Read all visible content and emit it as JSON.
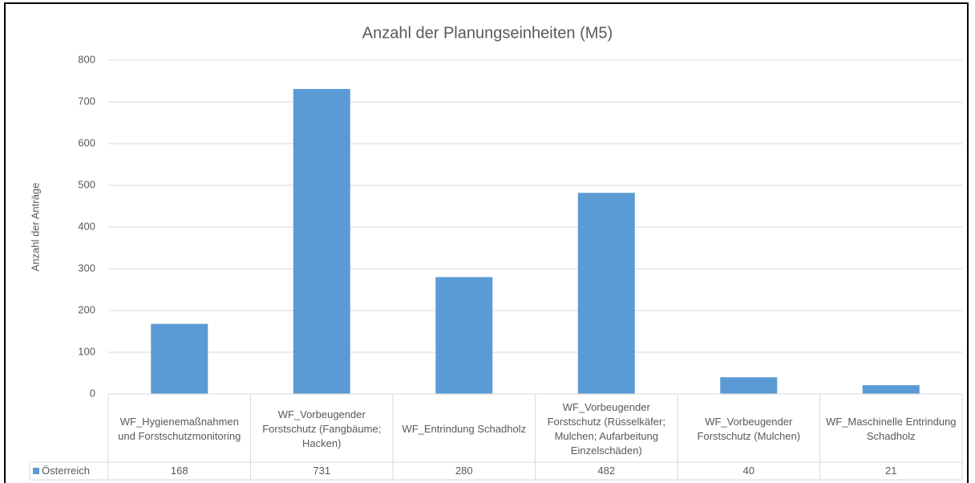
{
  "chart_data": {
    "type": "bar",
    "title": "Anzahl der Planungseinheiten (M5)",
    "y_label": "Anzahl der Anträge",
    "categories": [
      "WF_Hygienemaßnahmen und Forstschutzmonitoring",
      "WF_Vorbeugender Forstschutz (Fangbäume; Hacken)",
      "WF_Entrindung Schadholz",
      "WF_Vorbeugender Forstschutz (Rüsselkäfer; Mulchen; Aufarbeitung Einzelschäden)",
      "WF_Vorbeugender Forstschutz (Mulchen)",
      "WF_Maschinelle Entrindung Schadholz"
    ],
    "series": [
      {
        "name": "Österreich",
        "color": "#5b9bd5",
        "values": [
          168,
          731,
          280,
          482,
          40,
          21
        ]
      }
    ],
    "ylim": [
      0,
      800
    ],
    "yticks": [
      0,
      100,
      200,
      300,
      400,
      500,
      600,
      700,
      800
    ],
    "grid": true,
    "data_table": true
  }
}
